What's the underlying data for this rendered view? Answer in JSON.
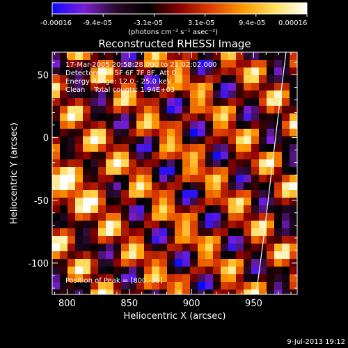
{
  "colorbar": {
    "tick_labels": [
      "-0.00016",
      "-9.4e-05",
      "-3.1e-05",
      "3.1e-05",
      "9.4e-05",
      "0.00016"
    ],
    "unit_label": "(photons cm⁻² s⁻¹ asec⁻²)",
    "stops": [
      "#0b0bff",
      "#7a1fd6",
      "#2a0a2a",
      "#000000",
      "#8a0000",
      "#e04000",
      "#ff9a00",
      "#ffe060",
      "#ffffff"
    ]
  },
  "chart_data": {
    "type": "heatmap",
    "title": "Reconstructed RHESSI Image",
    "xlabel": "Heliocentric X (arcsec)",
    "ylabel": "Heliocentric Y (arcsec)",
    "xlim": [
      788,
      985
    ],
    "ylim": [
      -125,
      68
    ],
    "xticks": [
      800,
      850,
      900,
      950
    ],
    "yticks": [
      -100,
      -50,
      0,
      50
    ],
    "annotations": [
      "17-Mar-2005 20:58:28.000 to 21:02:02.000",
      "Detectors: 4F 5F 6F 7F 8F, Att 0",
      "Energy Range: 12.0 - 25.0 keV",
      "Clean    Total counts: 1.94E+03"
    ],
    "peak_label": "Position of Peak = [800,-39]",
    "peak": [
      800,
      -39
    ],
    "value_range": [
      -0.00016,
      0.00016
    ],
    "limb_arc": [
      [
        976,
        68
      ],
      [
        970,
        20
      ],
      [
        964,
        -30
      ],
      [
        958,
        -80
      ],
      [
        952,
        -125
      ]
    ]
  },
  "footer": {
    "date": "9-Jul-2013 19:12"
  }
}
